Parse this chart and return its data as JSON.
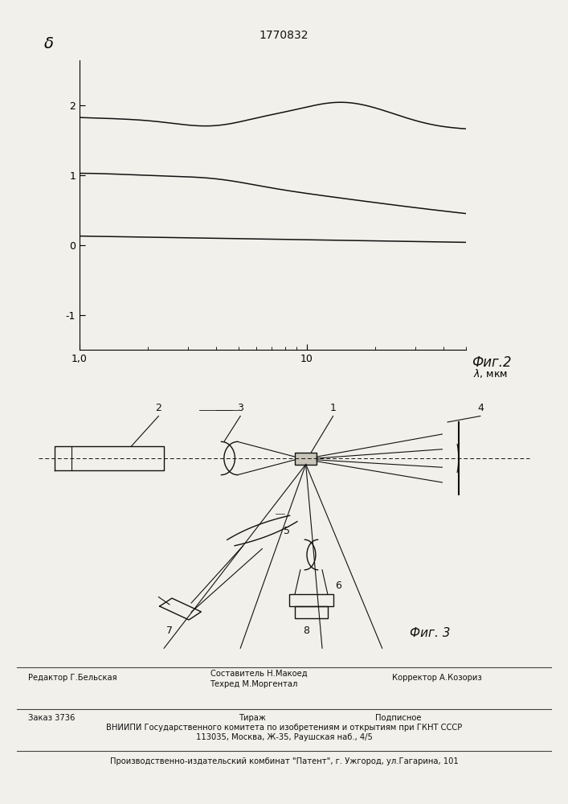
{
  "title": "1770832",
  "fig2_label": "Фиг.2",
  "fig3_label": "Фиг. 3",
  "ylabel": "δ",
  "xlabel": "λ, мкм",
  "bg_color": "#f2f0ea",
  "line_color": "#111111",
  "footer_editor": "Редактор Г.Бельская",
  "footer_comp1": "Составитель Н.Макоед",
  "footer_comp2": "Техред М.Моргентал",
  "footer_corrector": "Корректор А.Козориз",
  "footer_order": "Заказ 3736",
  "footer_tirazh": "Тираж",
  "footer_podp": "Подписное",
  "footer_vniip": "ВНИИПИ Государственного комитета по изобретениям и открытиям при ГКНТ СССР",
  "footer_addr": "113035, Москва, Ж-35, Раушская наб., 4/5",
  "footer_patent": "Производственно-издательский комбинат \"Патент\", г. Ужгород, ул.Гагарина, 101"
}
